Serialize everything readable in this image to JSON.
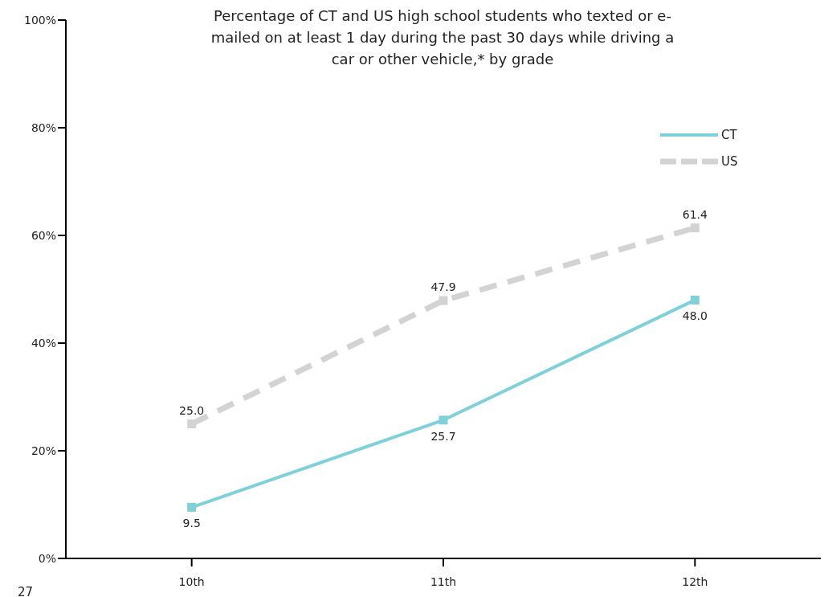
{
  "chart_data": {
    "type": "line",
    "title": "Percentage of CT and US high school students who texted or e-mailed on at least 1 day during the past 30 days while driving a car or other vehicle,* by grade",
    "categories": [
      "10th",
      "11th",
      "12th"
    ],
    "series": [
      {
        "name": "CT",
        "color": "#7fd0d8",
        "values": [
          9.5,
          25.7,
          48.0
        ],
        "value_labels": [
          "9.5",
          "25.7",
          "48.0"
        ],
        "line_style": "solid"
      },
      {
        "name": "US",
        "color": "#d3d3d3",
        "values": [
          25.0,
          47.9,
          61.4
        ],
        "value_labels": [
          "25.0",
          "47.9",
          "61.4"
        ],
        "line_style": "dashed"
      }
    ],
    "ylim": [
      0,
      100
    ],
    "yticks": [
      {
        "value": 0,
        "label": "0%"
      },
      {
        "value": 20,
        "label": "20%"
      },
      {
        "value": 40,
        "label": "40%"
      },
      {
        "value": 60,
        "label": "60%"
      },
      {
        "value": 80,
        "label": "80%"
      },
      {
        "value": 100,
        "label": "100%"
      }
    ],
    "grid": false,
    "legend": "top right",
    "marker": "square",
    "annotations": [
      "27"
    ]
  }
}
